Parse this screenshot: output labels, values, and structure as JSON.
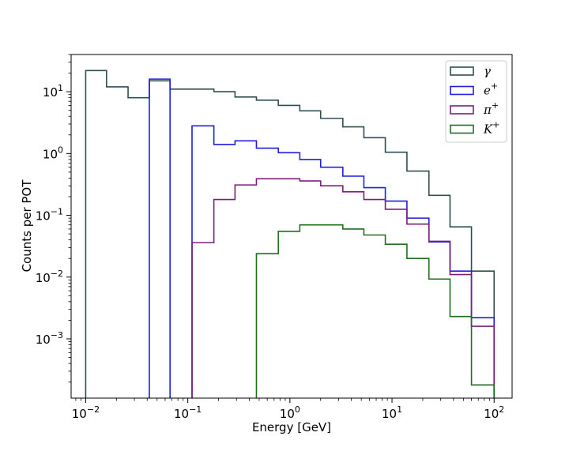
{
  "chart_data": {
    "type": "histogram-step",
    "title": "",
    "xlabel": "Energy [GeV]",
    "ylabel": "Counts per POT",
    "xscale": "log",
    "yscale": "log",
    "xlim": [
      0.0072,
      150
    ],
    "ylim": [
      0.00011,
      40
    ],
    "bin_edges": [
      0.01,
      0.016,
      0.026,
      0.042,
      0.067,
      0.11,
      0.18,
      0.29,
      0.47,
      0.77,
      1.25,
      2.0,
      3.3,
      5.3,
      8.6,
      14,
      23,
      37,
      60,
      100
    ],
    "xtick_labels": [
      "10",
      "10",
      "10",
      "10",
      "10"
    ],
    "xtick_exponents": [
      "−2",
      "−1",
      "0",
      "1",
      "2"
    ],
    "ytick_labels": [
      "10",
      "10",
      "10",
      "10",
      "10"
    ],
    "ytick_exponents": [
      "−3",
      "−2",
      "−1",
      "0",
      "1"
    ],
    "legend_position": "top-right",
    "series": [
      {
        "name": "γ",
        "label": "γ",
        "sup": "",
        "color": "#2f4f4f",
        "values": [
          22,
          12,
          8,
          15,
          11,
          11,
          10,
          8.2,
          7.3,
          6,
          4.9,
          3.7,
          2.7,
          1.8,
          1.05,
          0.52,
          0.21,
          0.065,
          0.0125
        ]
      },
      {
        "name": "e+",
        "label": "e",
        "sup": "+",
        "color": "#1f1fdc",
        "values": [
          null,
          null,
          null,
          16,
          null,
          2.8,
          1.4,
          1.6,
          1.22,
          1.03,
          0.8,
          0.6,
          0.43,
          0.28,
          0.17,
          0.09,
          0.037,
          0.0125,
          0.0022
        ]
      },
      {
        "name": "π+",
        "label": "π",
        "sup": "+",
        "color": "#7b1f7b",
        "values": [
          null,
          null,
          null,
          null,
          null,
          0.036,
          0.18,
          0.31,
          0.39,
          0.39,
          0.36,
          0.3,
          0.24,
          0.18,
          0.125,
          0.072,
          0.038,
          0.011,
          0.0016
        ]
      },
      {
        "name": "K+",
        "label": "K",
        "sup": "+",
        "color": "#1f6f1f",
        "values": [
          null,
          null,
          null,
          null,
          null,
          null,
          null,
          null,
          0.024,
          0.055,
          0.07,
          0.07,
          0.06,
          0.048,
          0.034,
          0.02,
          0.0093,
          0.0023,
          0.00018
        ]
      }
    ]
  }
}
